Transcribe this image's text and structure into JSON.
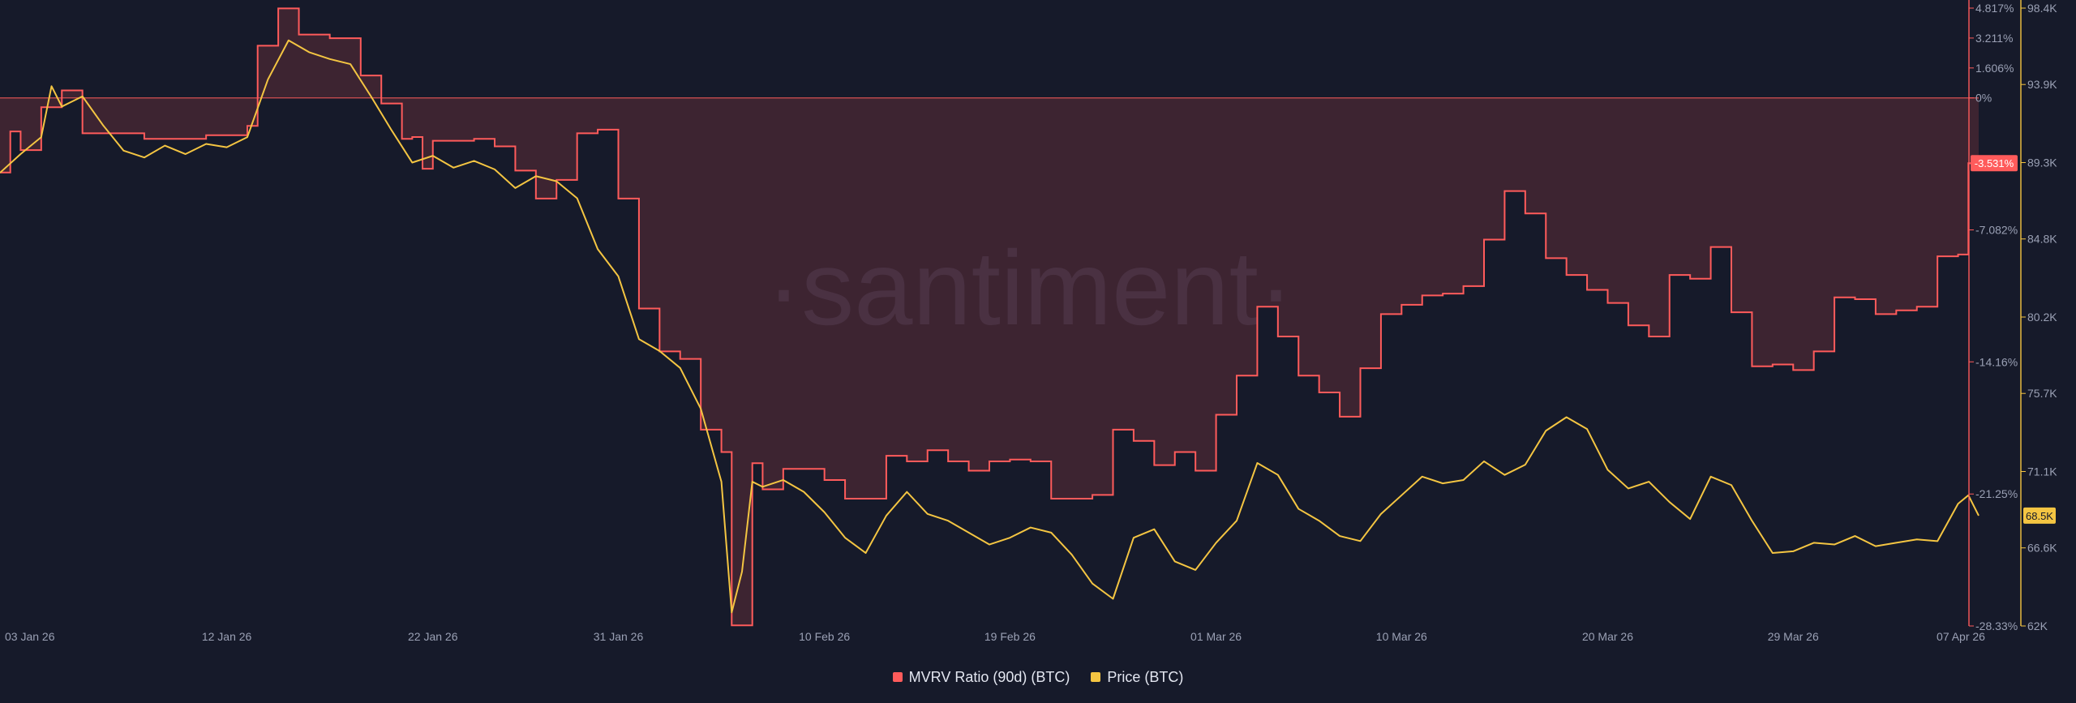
{
  "chart_data": {
    "type": "line",
    "watermark": "·santiment·",
    "x_ticks": [
      "03 Jan 26",
      "12 Jan 26",
      "22 Jan 26",
      "31 Jan 26",
      "10 Feb 26",
      "19 Feb 26",
      "01 Mar 26",
      "10 Mar 26",
      "20 Mar 26",
      "29 Mar 26",
      "07 Apr 26"
    ],
    "x_range": [
      "2026-01-01",
      "2026-04-07"
    ],
    "left_axis": {
      "name": "MVRV Ratio (90d) (BTC)",
      "ticks": [
        "4.817%",
        "3.211%",
        "1.606%",
        "0%",
        "-3.531%",
        "-7.082%",
        "-14.16%",
        "-21.25%",
        "-28.33%"
      ],
      "range": [
        -28.33,
        4.817
      ],
      "current_label": "-3.531%"
    },
    "right_axis": {
      "name": "Price (BTC)",
      "ticks": [
        "98.4K",
        "93.9K",
        "89.3K",
        "84.8K",
        "80.2K",
        "75.7K",
        "71.1K",
        "66.6K",
        "62K"
      ],
      "range": [
        62000,
        98400
      ],
      "current_label": "68.5K"
    },
    "series": [
      {
        "name": "MVRV Ratio (90d) (BTC)",
        "color": "#ff5b5b",
        "axis": "left",
        "points": [
          [
            "2026-01-01",
            -4.0
          ],
          [
            "2026-01-01T12:00",
            -1.8
          ],
          [
            "2026-01-02",
            -2.8
          ],
          [
            "2026-01-03",
            -0.5
          ],
          [
            "2026-01-04",
            0.4
          ],
          [
            "2026-01-05",
            -1.9
          ],
          [
            "2026-01-08",
            -2.2
          ],
          [
            "2026-01-11",
            -2.0
          ],
          [
            "2026-01-13",
            -1.5
          ],
          [
            "2026-01-13T12:00",
            2.8
          ],
          [
            "2026-01-14T12:00",
            4.8
          ],
          [
            "2026-01-15T12:00",
            3.4
          ],
          [
            "2026-01-17",
            3.2
          ],
          [
            "2026-01-18T12:00",
            1.2
          ],
          [
            "2026-01-19T12:00",
            -0.3
          ],
          [
            "2026-01-20T12:00",
            -2.2
          ],
          [
            "2026-01-21",
            -2.1
          ],
          [
            "2026-01-21T12:00",
            -3.8
          ],
          [
            "2026-01-22",
            -2.3
          ],
          [
            "2026-01-24",
            -2.2
          ],
          [
            "2026-01-25",
            -2.6
          ],
          [
            "2026-01-26",
            -3.9
          ],
          [
            "2026-01-27",
            -5.4
          ],
          [
            "2026-01-28",
            -4.4
          ],
          [
            "2026-01-29",
            -1.9
          ],
          [
            "2026-01-30",
            -1.7
          ],
          [
            "2026-01-31",
            -5.4
          ],
          [
            "2026-02-01",
            -11.3
          ],
          [
            "2026-02-02",
            -13.6
          ],
          [
            "2026-02-03",
            -14.0
          ],
          [
            "2026-02-04",
            -17.8
          ],
          [
            "2026-02-05",
            -19.0
          ],
          [
            "2026-02-05T12:00",
            -28.3
          ],
          [
            "2026-02-06",
            -28.3
          ],
          [
            "2026-02-06T12:00",
            -19.6
          ],
          [
            "2026-02-07",
            -21.0
          ],
          [
            "2026-02-08",
            -19.9
          ],
          [
            "2026-02-09",
            -19.9
          ],
          [
            "2026-02-10",
            -20.5
          ],
          [
            "2026-02-11",
            -21.5
          ],
          [
            "2026-02-12",
            -21.5
          ],
          [
            "2026-02-13",
            -19.2
          ],
          [
            "2026-02-14",
            -19.5
          ],
          [
            "2026-02-15",
            -18.9
          ],
          [
            "2026-02-16",
            -19.5
          ],
          [
            "2026-02-17",
            -20.0
          ],
          [
            "2026-02-18",
            -19.5
          ],
          [
            "2026-02-19",
            -19.4
          ],
          [
            "2026-02-20",
            -19.5
          ],
          [
            "2026-02-21",
            -21.5
          ],
          [
            "2026-02-23",
            -21.3
          ],
          [
            "2026-02-24",
            -17.8
          ],
          [
            "2026-02-25",
            -18.4
          ],
          [
            "2026-02-26",
            -19.7
          ],
          [
            "2026-02-27",
            -19.0
          ],
          [
            "2026-02-28",
            -20.0
          ],
          [
            "2026-03-01",
            -17.0
          ],
          [
            "2026-03-02",
            -14.9
          ],
          [
            "2026-03-03",
            -11.2
          ],
          [
            "2026-03-04",
            -12.8
          ],
          [
            "2026-03-05",
            -14.9
          ],
          [
            "2026-03-06",
            -15.8
          ],
          [
            "2026-03-07",
            -17.1
          ],
          [
            "2026-03-08",
            -14.5
          ],
          [
            "2026-03-09",
            -11.6
          ],
          [
            "2026-03-10",
            -11.1
          ],
          [
            "2026-03-11",
            -10.6
          ],
          [
            "2026-03-12",
            -10.5
          ],
          [
            "2026-03-13",
            -10.1
          ],
          [
            "2026-03-14",
            -7.6
          ],
          [
            "2026-03-15",
            -5.0
          ],
          [
            "2026-03-16",
            -6.2
          ],
          [
            "2026-03-17",
            -8.6
          ],
          [
            "2026-03-18",
            -9.5
          ],
          [
            "2026-03-19",
            -10.3
          ],
          [
            "2026-03-20",
            -11.0
          ],
          [
            "2026-03-21",
            -12.2
          ],
          [
            "2026-03-22",
            -12.8
          ],
          [
            "2026-03-23",
            -9.5
          ],
          [
            "2026-03-24",
            -9.7
          ],
          [
            "2026-03-25",
            -8.0
          ],
          [
            "2026-03-26",
            -11.5
          ],
          [
            "2026-03-27",
            -14.4
          ],
          [
            "2026-03-28",
            -14.3
          ],
          [
            "2026-03-29",
            -14.6
          ],
          [
            "2026-03-30",
            -13.6
          ],
          [
            "2026-03-31",
            -10.7
          ],
          [
            "2026-04-01",
            -10.8
          ],
          [
            "2026-04-02",
            -11.6
          ],
          [
            "2026-04-03",
            -11.4
          ],
          [
            "2026-04-04",
            -11.2
          ],
          [
            "2026-04-05",
            -8.5
          ],
          [
            "2026-04-06",
            -8.4
          ],
          [
            "2026-04-06T12:00",
            -3.5
          ],
          [
            "2026-04-07",
            -3.5
          ]
        ]
      },
      {
        "name": "Price (BTC)",
        "color": "#f4c542",
        "axis": "right",
        "points": [
          [
            "2026-01-01",
            88700
          ],
          [
            "2026-01-02",
            89800
          ],
          [
            "2026-01-03",
            90800
          ],
          [
            "2026-01-03T12:00",
            93800
          ],
          [
            "2026-01-04",
            92600
          ],
          [
            "2026-01-05",
            93200
          ],
          [
            "2026-01-06",
            91500
          ],
          [
            "2026-01-07",
            90000
          ],
          [
            "2026-01-08",
            89600
          ],
          [
            "2026-01-09",
            90300
          ],
          [
            "2026-01-10",
            89800
          ],
          [
            "2026-01-11",
            90400
          ],
          [
            "2026-01-12",
            90200
          ],
          [
            "2026-01-13",
            90800
          ],
          [
            "2026-01-14",
            94200
          ],
          [
            "2026-01-15",
            96500
          ],
          [
            "2026-01-16",
            95800
          ],
          [
            "2026-01-17",
            95400
          ],
          [
            "2026-01-18",
            95100
          ],
          [
            "2026-01-19",
            93200
          ],
          [
            "2026-01-20",
            91200
          ],
          [
            "2026-01-21",
            89300
          ],
          [
            "2026-01-22",
            89700
          ],
          [
            "2026-01-23",
            89000
          ],
          [
            "2026-01-24",
            89400
          ],
          [
            "2026-01-25",
            88900
          ],
          [
            "2026-01-26",
            87800
          ],
          [
            "2026-01-27",
            88500
          ],
          [
            "2026-01-28",
            88200
          ],
          [
            "2026-01-29",
            87200
          ],
          [
            "2026-01-30",
            84200
          ],
          [
            "2026-01-31",
            82600
          ],
          [
            "2026-02-01",
            78900
          ],
          [
            "2026-02-02",
            78200
          ],
          [
            "2026-02-03",
            77200
          ],
          [
            "2026-02-04",
            74800
          ],
          [
            "2026-02-05",
            70500
          ],
          [
            "2026-02-05T12:00",
            62800
          ],
          [
            "2026-02-06",
            65200
          ],
          [
            "2026-02-06T12:00",
            70500
          ],
          [
            "2026-02-07",
            70200
          ],
          [
            "2026-02-08",
            70600
          ],
          [
            "2026-02-09",
            69900
          ],
          [
            "2026-02-10",
            68700
          ],
          [
            "2026-02-11",
            67200
          ],
          [
            "2026-02-12",
            66300
          ],
          [
            "2026-02-13",
            68500
          ],
          [
            "2026-02-14",
            69900
          ],
          [
            "2026-02-15",
            68600
          ],
          [
            "2026-02-16",
            68200
          ],
          [
            "2026-02-17",
            67500
          ],
          [
            "2026-02-18",
            66800
          ],
          [
            "2026-02-19",
            67200
          ],
          [
            "2026-02-20",
            67800
          ],
          [
            "2026-02-21",
            67500
          ],
          [
            "2026-02-22",
            66200
          ],
          [
            "2026-02-23",
            64500
          ],
          [
            "2026-02-24",
            63600
          ],
          [
            "2026-02-25",
            67200
          ],
          [
            "2026-02-26",
            67700
          ],
          [
            "2026-02-27",
            65800
          ],
          [
            "2026-02-28",
            65300
          ],
          [
            "2026-03-01",
            66900
          ],
          [
            "2026-03-02",
            68200
          ],
          [
            "2026-03-03",
            71600
          ],
          [
            "2026-03-04",
            70900
          ],
          [
            "2026-03-05",
            68900
          ],
          [
            "2026-03-06",
            68200
          ],
          [
            "2026-03-07",
            67300
          ],
          [
            "2026-03-08",
            67000
          ],
          [
            "2026-03-09",
            68600
          ],
          [
            "2026-03-10",
            69700
          ],
          [
            "2026-03-11",
            70800
          ],
          [
            "2026-03-12",
            70400
          ],
          [
            "2026-03-13",
            70600
          ],
          [
            "2026-03-14",
            71700
          ],
          [
            "2026-03-15",
            70900
          ],
          [
            "2026-03-16",
            71500
          ],
          [
            "2026-03-17",
            73500
          ],
          [
            "2026-03-18",
            74300
          ],
          [
            "2026-03-19",
            73600
          ],
          [
            "2026-03-20",
            71200
          ],
          [
            "2026-03-21",
            70100
          ],
          [
            "2026-03-22",
            70500
          ],
          [
            "2026-03-23",
            69300
          ],
          [
            "2026-03-24",
            68300
          ],
          [
            "2026-03-25",
            70800
          ],
          [
            "2026-03-26",
            70300
          ],
          [
            "2026-03-27",
            68200
          ],
          [
            "2026-03-28",
            66300
          ],
          [
            "2026-03-29",
            66400
          ],
          [
            "2026-03-30",
            66900
          ],
          [
            "2026-03-31",
            66800
          ],
          [
            "2026-04-01",
            67300
          ],
          [
            "2026-04-02",
            66700
          ],
          [
            "2026-04-03",
            66900
          ],
          [
            "2026-04-04",
            67100
          ],
          [
            "2026-04-05",
            67000
          ],
          [
            "2026-04-06",
            69200
          ],
          [
            "2026-04-06T12:00",
            69700
          ],
          [
            "2026-04-07",
            68500
          ]
        ]
      }
    ],
    "legend": [
      "MVRV Ratio (90d) (BTC)",
      "Price (BTC)"
    ],
    "legend_position": "bottom-center",
    "grid": false
  }
}
